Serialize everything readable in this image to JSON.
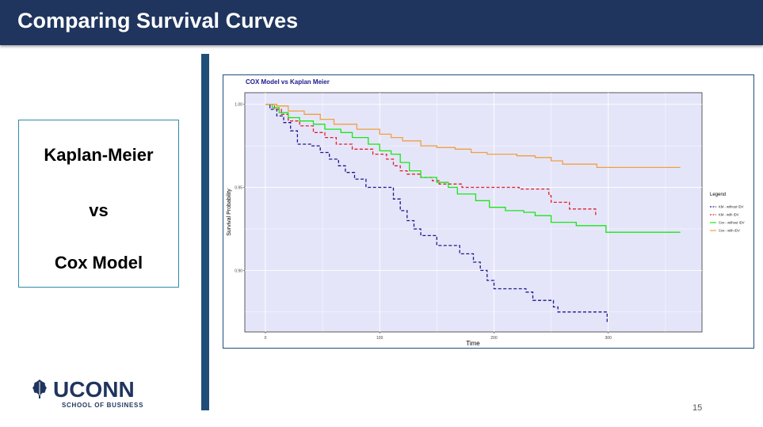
{
  "slide": {
    "title": "Comparing Survival Curves",
    "page_number": "15"
  },
  "textbox": {
    "line1": "Kaplan-Meier",
    "line2": "vs",
    "line3": "Cox Model"
  },
  "logo": {
    "wordmark": "UCONN",
    "subtitle": "SCHOOL OF BUSINESS",
    "icon": "oak-leaf-icon"
  },
  "colors": {
    "title_bar": "#1f355e",
    "accent_bar": "#1f4e79",
    "panel_bg": "#e5e5fa"
  },
  "chart_data": {
    "type": "line",
    "title": "COX Model vs Kaplan Meier",
    "xlabel": "Time",
    "ylabel": "Survival Probability",
    "xlim": [
      -18,
      382
    ],
    "ylim": [
      0.863,
      1.007
    ],
    "x_ticks": [
      0,
      100,
      200,
      300
    ],
    "y_ticks": [
      0.9,
      0.95,
      1.0
    ],
    "y_tick_labels": [
      "0.90",
      "0.95",
      "1.00"
    ],
    "grid": true,
    "legend": {
      "title": "Legend",
      "placement": "right",
      "entries": [
        "KM - without IDV",
        "KM - with IDV",
        "Cox - without IDV",
        "Cox - with IDV"
      ]
    },
    "series": [
      {
        "name": "KM - without IDV",
        "color": "#1a1a8c",
        "dash": true,
        "points": [
          [
            0,
            1.0
          ],
          [
            4,
            0.997
          ],
          [
            10,
            0.993
          ],
          [
            16,
            0.989
          ],
          [
            22,
            0.984
          ],
          [
            28,
            0.976
          ],
          [
            40,
            0.975
          ],
          [
            48,
            0.971
          ],
          [
            56,
            0.967
          ],
          [
            64,
            0.963
          ],
          [
            70,
            0.959
          ],
          [
            78,
            0.955
          ],
          [
            88,
            0.95
          ],
          [
            106,
            0.95
          ],
          [
            112,
            0.943
          ],
          [
            118,
            0.936
          ],
          [
            124,
            0.93
          ],
          [
            130,
            0.925
          ],
          [
            136,
            0.921
          ],
          [
            146,
            0.921
          ],
          [
            150,
            0.915
          ],
          [
            166,
            0.915
          ],
          [
            170,
            0.91
          ],
          [
            182,
            0.905
          ],
          [
            188,
            0.9
          ],
          [
            194,
            0.894
          ],
          [
            200,
            0.889
          ],
          [
            222,
            0.889
          ],
          [
            228,
            0.887
          ],
          [
            234,
            0.882
          ],
          [
            246,
            0.882
          ],
          [
            252,
            0.878
          ],
          [
            256,
            0.875
          ],
          [
            298,
            0.875
          ],
          [
            299,
            0.869
          ]
        ]
      },
      {
        "name": "KM - with IDV",
        "color": "#e0202a",
        "dash": true,
        "points": [
          [
            0,
            1.0
          ],
          [
            8,
            0.997
          ],
          [
            14,
            0.994
          ],
          [
            20,
            0.99
          ],
          [
            30,
            0.987
          ],
          [
            42,
            0.983
          ],
          [
            52,
            0.98
          ],
          [
            62,
            0.976
          ],
          [
            76,
            0.973
          ],
          [
            94,
            0.97
          ],
          [
            106,
            0.967
          ],
          [
            112,
            0.963
          ],
          [
            118,
            0.96
          ],
          [
            124,
            0.958
          ],
          [
            136,
            0.956
          ],
          [
            146,
            0.954
          ],
          [
            152,
            0.952
          ],
          [
            166,
            0.952
          ],
          [
            172,
            0.95
          ],
          [
            216,
            0.95
          ],
          [
            222,
            0.949
          ],
          [
            244,
            0.949
          ],
          [
            248,
            0.945
          ],
          [
            250,
            0.941
          ],
          [
            264,
            0.941
          ],
          [
            266,
            0.937
          ],
          [
            288,
            0.937
          ],
          [
            289,
            0.933
          ]
        ]
      },
      {
        "name": "Cox - without IDV",
        "color": "#17e817",
        "points": [
          [
            0,
            1.0
          ],
          [
            6,
            0.998
          ],
          [
            12,
            0.995
          ],
          [
            20,
            0.992
          ],
          [
            30,
            0.99
          ],
          [
            42,
            0.988
          ],
          [
            52,
            0.985
          ],
          [
            66,
            0.983
          ],
          [
            76,
            0.98
          ],
          [
            90,
            0.976
          ],
          [
            100,
            0.972
          ],
          [
            110,
            0.97
          ],
          [
            118,
            0.965
          ],
          [
            126,
            0.96
          ],
          [
            136,
            0.956
          ],
          [
            150,
            0.953
          ],
          [
            160,
            0.95
          ],
          [
            168,
            0.946
          ],
          [
            184,
            0.942
          ],
          [
            196,
            0.938
          ],
          [
            210,
            0.936
          ],
          [
            226,
            0.935
          ],
          [
            236,
            0.933
          ],
          [
            244,
            0.933
          ],
          [
            250,
            0.929
          ],
          [
            266,
            0.929
          ],
          [
            272,
            0.927
          ],
          [
            296,
            0.927
          ],
          [
            298,
            0.923
          ],
          [
            363,
            0.923
          ]
        ]
      },
      {
        "name": "Cox - with IDV",
        "color": "#f0a040",
        "points": [
          [
            0,
            1.0
          ],
          [
            10,
            0.999
          ],
          [
            20,
            0.996
          ],
          [
            34,
            0.994
          ],
          [
            48,
            0.991
          ],
          [
            60,
            0.988
          ],
          [
            80,
            0.985
          ],
          [
            100,
            0.982
          ],
          [
            110,
            0.98
          ],
          [
            120,
            0.978
          ],
          [
            136,
            0.975
          ],
          [
            150,
            0.974
          ],
          [
            166,
            0.973
          ],
          [
            180,
            0.971
          ],
          [
            194,
            0.97
          ],
          [
            220,
            0.969
          ],
          [
            236,
            0.968
          ],
          [
            250,
            0.966
          ],
          [
            260,
            0.964
          ],
          [
            286,
            0.964
          ],
          [
            290,
            0.962
          ],
          [
            363,
            0.962
          ]
        ]
      }
    ]
  }
}
